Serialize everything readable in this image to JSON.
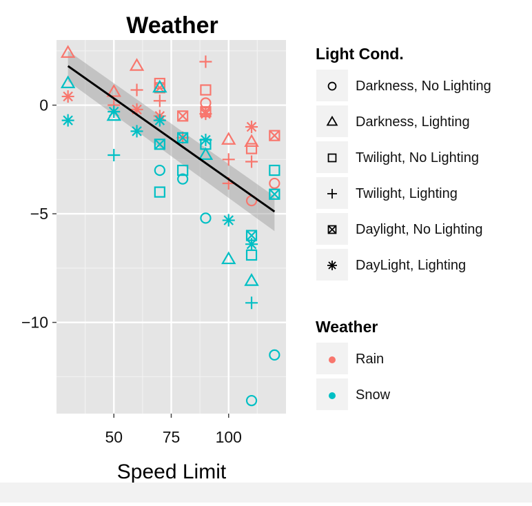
{
  "chart_data": {
    "type": "scatter",
    "title": "Weather",
    "xlabel": "Speed Limit",
    "ylabel": "",
    "xlim": [
      25,
      125
    ],
    "ylim": [
      -14.2,
      3.0
    ],
    "xticks": [
      50,
      75,
      100
    ],
    "xtick_labels": [
      "50",
      "75",
      "100"
    ],
    "yticks": [
      0,
      -5,
      -10
    ],
    "ytick_labels": [
      "0",
      "−5",
      "−10"
    ],
    "grid": true,
    "legend_placement": "right",
    "colors": {
      "Rain": "#F8766D",
      "Snow": "#00BFC4"
    },
    "legends": [
      {
        "title": "Light Cond.",
        "entries": [
          {
            "label": "Darkness, No Lighting",
            "shape": "circle"
          },
          {
            "label": "Darkness, Lighting",
            "shape": "triangle"
          },
          {
            "label": "Twilight, No Lighting",
            "shape": "square"
          },
          {
            "label": "Twilight, Lighting",
            "shape": "plus"
          },
          {
            "label": "Daylight, No Lighting",
            "shape": "boxed-x"
          },
          {
            "label": "DayLight, Lighting",
            "shape": "asterisk"
          }
        ]
      },
      {
        "title": "Weather",
        "entries": [
          {
            "label": "Rain",
            "color": "#F8766D"
          },
          {
            "label": "Snow",
            "color": "#00BFC4"
          }
        ]
      }
    ],
    "fit_line": {
      "method": "linear regression",
      "x": [
        30,
        120
      ],
      "y": [
        1.8,
        -4.9
      ],
      "ci_upper": [
        2.5,
        -4.2
      ],
      "ci_lower": [
        1.1,
        -5.8
      ]
    },
    "points": [
      {
        "x": 30,
        "y": 2.4,
        "weather": "Rain",
        "light": "Darkness, Lighting"
      },
      {
        "x": 30,
        "y": 0.4,
        "weather": "Rain",
        "light": "DayLight, Lighting"
      },
      {
        "x": 30,
        "y": 1.0,
        "weather": "Snow",
        "light": "Darkness, Lighting"
      },
      {
        "x": 30,
        "y": -0.7,
        "weather": "Snow",
        "light": "DayLight, Lighting"
      },
      {
        "x": 50,
        "y": 0.6,
        "weather": "Rain",
        "light": "Darkness, Lighting"
      },
      {
        "x": 50,
        "y": 0.0,
        "weather": "Rain",
        "light": "Twilight, Lighting"
      },
      {
        "x": 50,
        "y": -0.3,
        "weather": "Snow",
        "light": "DayLight, Lighting"
      },
      {
        "x": 50,
        "y": -0.5,
        "weather": "Snow",
        "light": "Darkness, Lighting"
      },
      {
        "x": 50,
        "y": -2.3,
        "weather": "Snow",
        "light": "Twilight, Lighting"
      },
      {
        "x": 60,
        "y": 1.8,
        "weather": "Rain",
        "light": "Darkness, Lighting"
      },
      {
        "x": 60,
        "y": 0.7,
        "weather": "Rain",
        "light": "Twilight, Lighting"
      },
      {
        "x": 60,
        "y": -0.2,
        "weather": "Rain",
        "light": "DayLight, Lighting"
      },
      {
        "x": 60,
        "y": -1.2,
        "weather": "Snow",
        "light": "DayLight, Lighting"
      },
      {
        "x": 70,
        "y": 1.0,
        "weather": "Rain",
        "light": "Twilight, No Lighting"
      },
      {
        "x": 70,
        "y": 0.8,
        "weather": "Rain",
        "light": "Daylight, No Lighting"
      },
      {
        "x": 70,
        "y": 0.2,
        "weather": "Rain",
        "light": "Twilight, Lighting"
      },
      {
        "x": 70,
        "y": -0.5,
        "weather": "Rain",
        "light": "DayLight, Lighting"
      },
      {
        "x": 70,
        "y": 0.8,
        "weather": "Snow",
        "light": "Darkness, Lighting"
      },
      {
        "x": 70,
        "y": -0.7,
        "weather": "Snow",
        "light": "DayLight, Lighting"
      },
      {
        "x": 70,
        "y": -1.8,
        "weather": "Snow",
        "light": "Daylight, No Lighting"
      },
      {
        "x": 70,
        "y": -3.0,
        "weather": "Snow",
        "light": "Darkness, No Lighting"
      },
      {
        "x": 70,
        "y": -4.0,
        "weather": "Snow",
        "light": "Twilight, No Lighting"
      },
      {
        "x": 80,
        "y": -0.5,
        "weather": "Rain",
        "light": "Daylight, No Lighting"
      },
      {
        "x": 80,
        "y": -1.5,
        "weather": "Rain",
        "light": "Twilight, Lighting"
      },
      {
        "x": 80,
        "y": -1.5,
        "weather": "Snow",
        "light": "Daylight, No Lighting"
      },
      {
        "x": 80,
        "y": -3.0,
        "weather": "Snow",
        "light": "Twilight, No Lighting"
      },
      {
        "x": 80,
        "y": -3.4,
        "weather": "Snow",
        "light": "Darkness, No Lighting"
      },
      {
        "x": 90,
        "y": 2.0,
        "weather": "Rain",
        "light": "Twilight, Lighting"
      },
      {
        "x": 90,
        "y": 0.7,
        "weather": "Rain",
        "light": "Twilight, No Lighting"
      },
      {
        "x": 90,
        "y": 0.1,
        "weather": "Rain",
        "light": "Darkness, No Lighting"
      },
      {
        "x": 90,
        "y": -0.3,
        "weather": "Rain",
        "light": "Daylight, No Lighting"
      },
      {
        "x": 90,
        "y": -0.4,
        "weather": "Rain",
        "light": "DayLight, Lighting"
      },
      {
        "x": 90,
        "y": -1.6,
        "weather": "Snow",
        "light": "DayLight, Lighting"
      },
      {
        "x": 90,
        "y": -1.8,
        "weather": "Snow",
        "light": "Twilight, No Lighting"
      },
      {
        "x": 90,
        "y": -2.3,
        "weather": "Snow",
        "light": "Darkness, Lighting"
      },
      {
        "x": 90,
        "y": -5.2,
        "weather": "Snow",
        "light": "Darkness, No Lighting"
      },
      {
        "x": 100,
        "y": -1.6,
        "weather": "Rain",
        "light": "Darkness, Lighting"
      },
      {
        "x": 100,
        "y": -2.5,
        "weather": "Rain",
        "light": "Twilight, Lighting"
      },
      {
        "x": 100,
        "y": -3.6,
        "weather": "Rain",
        "light": "Twilight, Lighting"
      },
      {
        "x": 100,
        "y": -5.3,
        "weather": "Snow",
        "light": "DayLight, Lighting"
      },
      {
        "x": 100,
        "y": -7.1,
        "weather": "Snow",
        "light": "Darkness, Lighting"
      },
      {
        "x": 110,
        "y": -1.0,
        "weather": "Rain",
        "light": "DayLight, Lighting"
      },
      {
        "x": 110,
        "y": -1.7,
        "weather": "Rain",
        "light": "Darkness, Lighting"
      },
      {
        "x": 110,
        "y": -2.0,
        "weather": "Rain",
        "light": "Twilight, No Lighting"
      },
      {
        "x": 110,
        "y": -2.6,
        "weather": "Rain",
        "light": "Twilight, Lighting"
      },
      {
        "x": 110,
        "y": -4.4,
        "weather": "Rain",
        "light": "Darkness, No Lighting"
      },
      {
        "x": 110,
        "y": -6.0,
        "weather": "Snow",
        "light": "Daylight, No Lighting"
      },
      {
        "x": 110,
        "y": -6.4,
        "weather": "Snow",
        "light": "DayLight, Lighting"
      },
      {
        "x": 110,
        "y": -6.9,
        "weather": "Snow",
        "light": "Twilight, No Lighting"
      },
      {
        "x": 110,
        "y": -8.1,
        "weather": "Snow",
        "light": "Darkness, Lighting"
      },
      {
        "x": 110,
        "y": -9.1,
        "weather": "Snow",
        "light": "Twilight, Lighting"
      },
      {
        "x": 110,
        "y": -13.6,
        "weather": "Snow",
        "light": "Darkness, No Lighting"
      },
      {
        "x": 120,
        "y": -1.4,
        "weather": "Rain",
        "light": "Daylight, No Lighting"
      },
      {
        "x": 120,
        "y": -3.6,
        "weather": "Rain",
        "light": "Darkness, No Lighting"
      },
      {
        "x": 120,
        "y": -3.0,
        "weather": "Snow",
        "light": "Twilight, No Lighting"
      },
      {
        "x": 120,
        "y": -4.1,
        "weather": "Snow",
        "light": "Daylight, No Lighting"
      },
      {
        "x": 120,
        "y": -11.5,
        "weather": "Snow",
        "light": "Darkness, No Lighting"
      }
    ]
  }
}
